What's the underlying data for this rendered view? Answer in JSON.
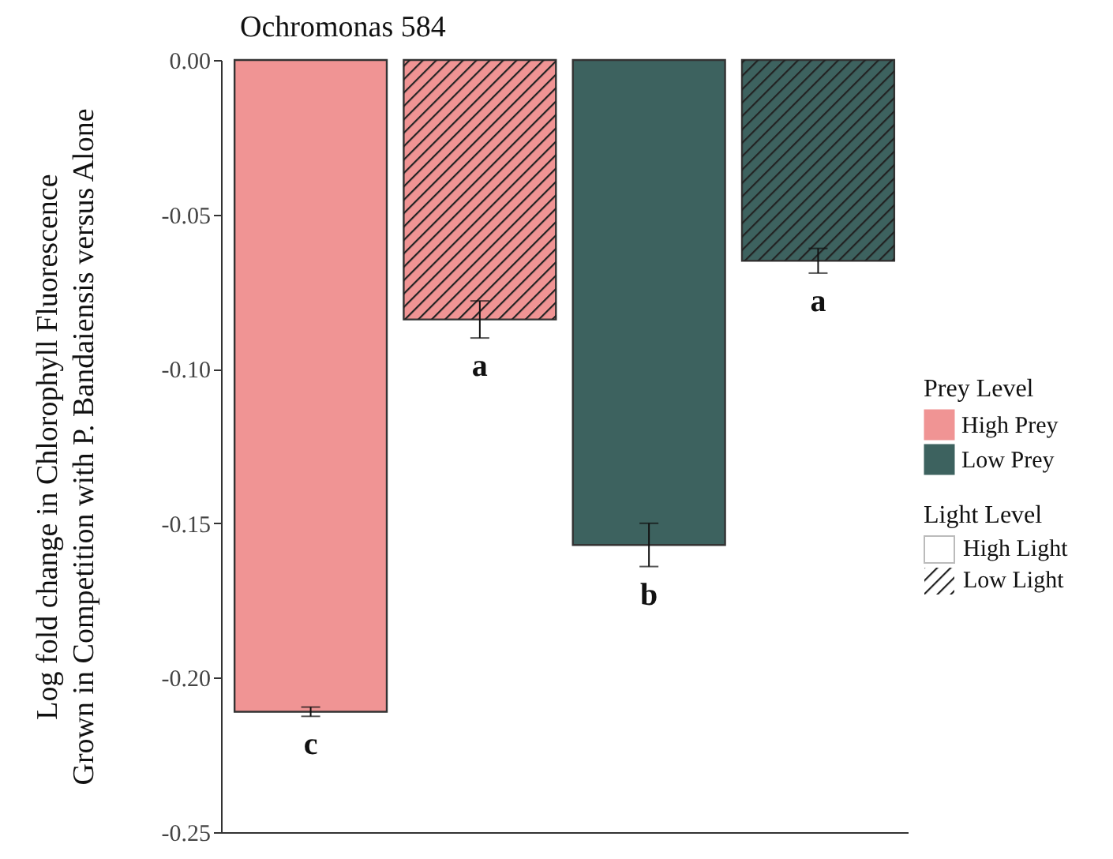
{
  "chart_data": {
    "type": "bar",
    "title": "Ochromonas 584",
    "ylabel": "Log fold change in Chlorophyll Fluorescence\nGrown in Competition with P. Bandaiensis versus Alone",
    "categories": [
      null,
      null,
      null,
      null
    ],
    "series": [
      {
        "name": "High Prey",
        "color": "#f09494",
        "values": [
          -0.211,
          -0.084,
          null,
          null
        ],
        "errors": [
          0.0015,
          0.006,
          null,
          null
        ]
      },
      {
        "name": "Low Prey",
        "color": "#3d625f",
        "values": [
          null,
          null,
          -0.157,
          -0.065
        ],
        "errors": [
          null,
          null,
          0.007,
          0.004
        ]
      }
    ],
    "ylim": [
      -0.25,
      0
    ],
    "yticks": [
      {
        "value": -0.25,
        "label": "-0.25"
      },
      {
        "value": -0.2,
        "label": "-0.20"
      },
      {
        "value": -0.15,
        "label": "-0.15"
      },
      {
        "value": -0.1,
        "label": "-0.10"
      },
      {
        "value": -0.05,
        "label": "-0.05"
      },
      {
        "value": 0,
        "label": "0.00"
      }
    ],
    "legend": "right",
    "legend_title": "Prey Level",
    "annotations": [
      "c",
      "a",
      "b",
      "a",
      "Light Level",
      "High Light",
      "Low Light"
    ]
  }
}
